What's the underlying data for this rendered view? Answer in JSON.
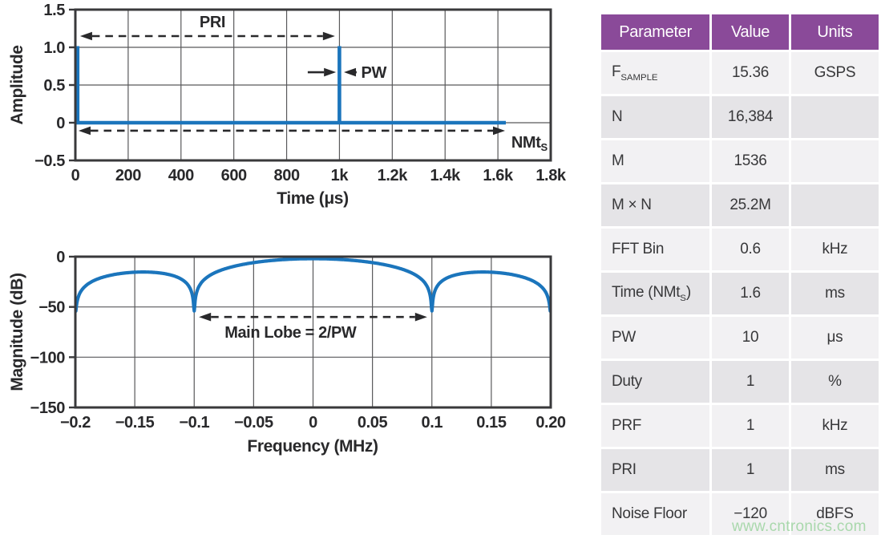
{
  "figure": {
    "watermark": "www.cntronics.com"
  },
  "colors": {
    "curve_blue": "#1b75bc",
    "frame": "#39393b",
    "grid": "#59595b",
    "text": "#29292b",
    "table_header_bg": "#8a4a99",
    "table_header_text": "#ffffff",
    "row_light": "#f2f1f3",
    "row_dark": "#e5e4e7",
    "table_text": "#38383a",
    "watermark_green": "#a9d8ac"
  },
  "chart_data": [
    {
      "id": "pulse_time_domain",
      "type": "line",
      "title": "",
      "xlabel": "Time (μs)",
      "ylabel": "Amplitude",
      "xlim": [
        0,
        1800
      ],
      "ylim": [
        -0.5,
        1.5
      ],
      "grid": true,
      "xticks": {
        "values": [
          0,
          200,
          400,
          600,
          800,
          1000,
          1200,
          1400,
          1600,
          1800
        ],
        "labels": [
          "0",
          "200",
          "400",
          "600",
          "800",
          "1k",
          "1.2k",
          "1.4k",
          "1.6k",
          "1.8k"
        ]
      },
      "yticks": {
        "values": [
          1.5,
          1.0,
          0.5,
          0,
          -0.5
        ],
        "labels": [
          "1.5",
          "1.0",
          "0.5",
          "0",
          "−0.5"
        ]
      },
      "series": [
        {
          "name": "pulse train",
          "kind": "pulse_train",
          "baseline_amplitude": 0,
          "pulse_amplitude": 1.0,
          "pulse_width_us": 10,
          "pulse_positions_us": [
            0,
            1000
          ],
          "record_length_us": 1630
        }
      ],
      "annotations": {
        "arrows": [
          {
            "name": "pri-arrow",
            "x1": 18,
            "y1": 1.149,
            "x2": 983,
            "y2": 1.149,
            "heads": "both",
            "dashed": true
          },
          {
            "name": "pw-arrow-left",
            "x1": 880,
            "y1": 0.67,
            "x2": 987,
            "y2": 0.67,
            "heads": "end",
            "dashed": false
          },
          {
            "name": "pw-arrow-right",
            "x1": 1065,
            "y1": 0.67,
            "x2": 1017,
            "y2": 0.67,
            "heads": "end",
            "dashed": false
          },
          {
            "name": "nmts-arrow",
            "x1": 12,
            "y1": -0.106,
            "x2": 1627,
            "y2": -0.106,
            "heads": "both",
            "dashed": true
          }
        ],
        "labels": [
          {
            "name": "pri-label",
            "text": "PRI",
            "x": 519,
            "y": 1.34,
            "anchor": "middle"
          },
          {
            "name": "pw-label",
            "text": "PW",
            "x": 1082,
            "y": 0.67,
            "anchor": "start"
          },
          {
            "name": "nmts-label",
            "text": "NMt~S~",
            "x": 1651,
            "y": -0.255,
            "anchor": "start"
          }
        ]
      }
    },
    {
      "id": "pulse_spectrum",
      "type": "line",
      "title": "",
      "xlabel": "Frequency (MHz)",
      "ylabel": "Magnitude (dB)",
      "xlim": [
        -0.2,
        0.2
      ],
      "ylim": [
        -150,
        0
      ],
      "grid": true,
      "xticks": {
        "values": [
          -0.2,
          -0.15,
          -0.1,
          -0.05,
          0,
          0.05,
          0.1,
          0.15,
          0.2
        ],
        "labels": [
          "−0.2",
          "−0.15",
          "−0.1",
          "−0.05",
          "0",
          "0.05",
          "0.1",
          "0.15",
          "0.20"
        ]
      },
      "yticks": {
        "values": [
          0,
          -50,
          -100,
          -150
        ],
        "labels": [
          "0",
          "−50",
          "−100",
          "−150"
        ]
      },
      "series": [
        {
          "name": "sinc envelope",
          "kind": "sinc_db",
          "formula": "20·log10|sinc(f·PW)| + peak_db",
          "pulse_width_us": 10,
          "peak_db": -2,
          "clamp_db": -54,
          "nulls_mhz": [
            -0.2,
            -0.1,
            0.1,
            0.2
          ],
          "sidelobe_peak_db": -15.3,
          "key_points": [
            {
              "f_mhz": -0.2,
              "db": -54
            },
            {
              "f_mhz": -0.15,
              "db": -15.3
            },
            {
              "f_mhz": -0.1,
              "db": -52
            },
            {
              "f_mhz": 0,
              "db": -2
            },
            {
              "f_mhz": 0.1,
              "db": -52
            },
            {
              "f_mhz": 0.15,
              "db": -15.3
            },
            {
              "f_mhz": 0.2,
              "db": -54
            }
          ]
        }
      ],
      "annotations": {
        "arrows": [
          {
            "name": "main-lobe-arrow",
            "x1": -0.096,
            "y1": -60,
            "x2": 0.096,
            "y2": -60,
            "heads": "both",
            "dashed": true
          }
        ],
        "labels": [
          {
            "name": "main-lobe-label",
            "text": "Main Lobe = 2/PW",
            "x": -0.019,
            "y": -75,
            "anchor": "middle"
          }
        ]
      }
    }
  ],
  "table": {
    "headers": [
      "Parameter",
      "Value",
      "Units"
    ],
    "rows": [
      {
        "parameter": "F~SAMPLE~",
        "value": "15.36",
        "units": "GSPS"
      },
      {
        "parameter": "N",
        "value": "16,384",
        "units": ""
      },
      {
        "parameter": "M",
        "value": "1536",
        "units": ""
      },
      {
        "parameter": "M × N",
        "value": "25.2M",
        "units": ""
      },
      {
        "parameter": "FFT Bin",
        "value": "0.6",
        "units": "kHz"
      },
      {
        "parameter": "Time (NMt~S~)",
        "value": "1.6",
        "units": "ms"
      },
      {
        "parameter": "PW",
        "value": "10",
        "units": "μs"
      },
      {
        "parameter": "Duty",
        "value": "1",
        "units": "%"
      },
      {
        "parameter": "PRF",
        "value": "1",
        "units": "kHz"
      },
      {
        "parameter": "PRI",
        "value": "1",
        "units": "ms"
      },
      {
        "parameter": "Noise Floor",
        "value": "−120",
        "units": "dBFS"
      }
    ]
  }
}
